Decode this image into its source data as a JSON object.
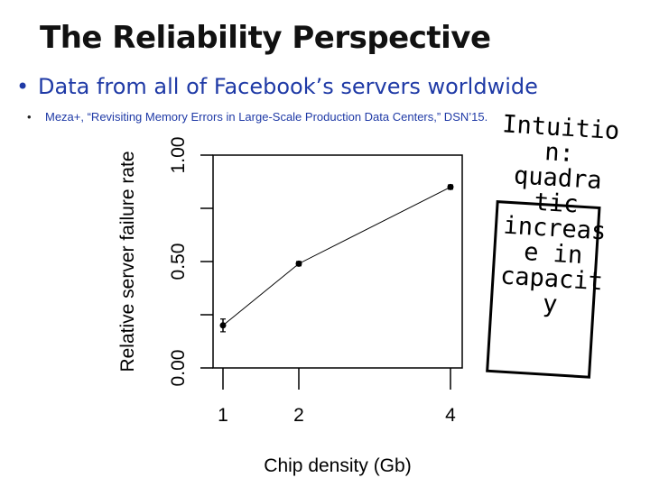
{
  "slide": {
    "title": "The Reliability Perspective",
    "bullet_main": "Data from all of Facebook’s servers worldwide",
    "bullet_sub": "Meza+, “Revisiting Memory Errors in Large-Scale Production Data Centers,” DSN’15.",
    "callout": "Intuitio\nn:\nquadra\ntic\nincreas\ne in\ncapacit\ny",
    "bullet_symbol": "•"
  },
  "chart_data": {
    "type": "line",
    "x": [
      1,
      2,
      4
    ],
    "xticks": [
      "1",
      "2",
      "4"
    ],
    "series": [
      {
        "values": [
          0.2,
          0.49,
          0.85
        ],
        "error": [
          0.03,
          0.01,
          0.01
        ]
      }
    ],
    "xlabel": "Chip density (Gb)",
    "ylabel": "Relative server failure rate",
    "xlim": [
      1,
      4
    ],
    "ylim": [
      0,
      1
    ],
    "yticks": [
      "0.00",
      "0.50",
      "1.00"
    ],
    "grid": false,
    "colors": {
      "line": "#000000",
      "axis": "#000000"
    }
  }
}
